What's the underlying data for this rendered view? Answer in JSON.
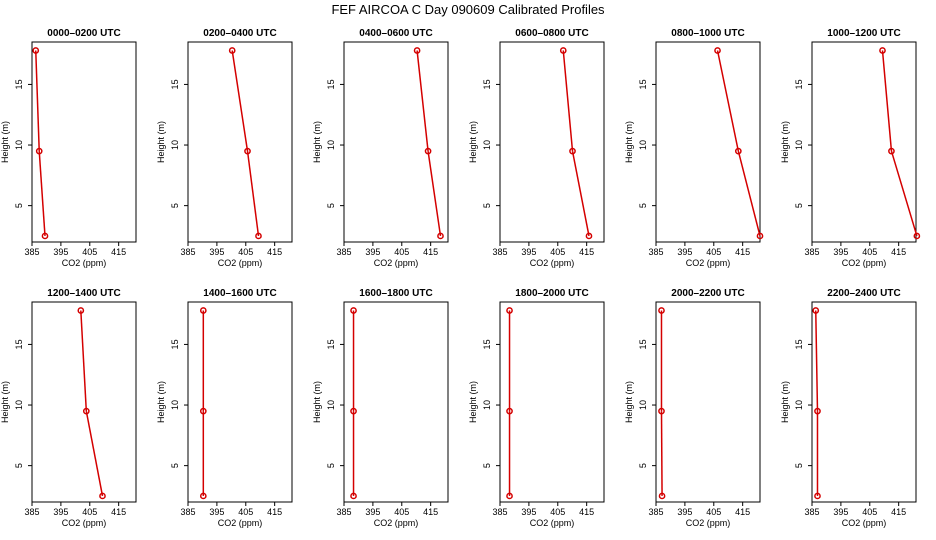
{
  "figure_title": "FEF AIRCOA C  Day 090609  Calibrated Profiles",
  "colors": {
    "profile": "#d40000",
    "axes": "#000000"
  },
  "chart_data": [
    {
      "type": "line",
      "title": "0000–0200 UTC",
      "xlabel": "CO2 (ppm)",
      "ylabel": "Height (m)",
      "x_ticks": [
        "385",
        "395",
        "405",
        "415"
      ],
      "y_ticks": [
        "5",
        "10",
        "15"
      ],
      "xlim": [
        385,
        421
      ],
      "ylim": [
        2,
        18.5
      ],
      "heights": [
        17.8,
        9.5,
        2.5
      ],
      "co2": [
        386.3,
        387.5,
        389.5
      ]
    },
    {
      "type": "line",
      "title": "0200–0400 UTC",
      "xlabel": "CO2 (ppm)",
      "ylabel": "Height (m)",
      "x_ticks": [
        "385",
        "395",
        "405",
        "415"
      ],
      "y_ticks": [
        "5",
        "10",
        "15"
      ],
      "xlim": [
        385,
        421
      ],
      "ylim": [
        2,
        18.5
      ],
      "heights": [
        17.8,
        9.5,
        2.5
      ],
      "co2": [
        400.3,
        405.6,
        409.4
      ]
    },
    {
      "type": "line",
      "title": "0400–0600 UTC",
      "xlabel": "CO2 (ppm)",
      "ylabel": "Height (m)",
      "x_ticks": [
        "385",
        "395",
        "405",
        "415"
      ],
      "y_ticks": [
        "5",
        "10",
        "15"
      ],
      "xlim": [
        385,
        421
      ],
      "ylim": [
        2,
        18.5
      ],
      "heights": [
        17.8,
        9.5,
        2.5
      ],
      "co2": [
        410.3,
        414.1,
        418.4
      ]
    },
    {
      "type": "line",
      "title": "0600–0800 UTC",
      "xlabel": "CO2 (ppm)",
      "ylabel": "Height (m)",
      "x_ticks": [
        "385",
        "395",
        "405",
        "415"
      ],
      "y_ticks": [
        "5",
        "10",
        "15"
      ],
      "xlim": [
        385,
        421
      ],
      "ylim": [
        2,
        18.5
      ],
      "heights": [
        17.8,
        9.5,
        2.5
      ],
      "co2": [
        406.9,
        410.1,
        415.8
      ]
    },
    {
      "type": "line",
      "title": "0800–1000 UTC",
      "xlabel": "CO2 (ppm)",
      "ylabel": "Height (m)",
      "x_ticks": [
        "385",
        "395",
        "405",
        "415"
      ],
      "y_ticks": [
        "5",
        "10",
        "15"
      ],
      "xlim": [
        385,
        421
      ],
      "ylim": [
        2,
        18.5
      ],
      "heights": [
        17.8,
        9.5,
        2.5
      ],
      "co2": [
        406.3,
        413.5,
        421.0
      ]
    },
    {
      "type": "line",
      "title": "1000–1200 UTC",
      "xlabel": "CO2 (ppm)",
      "ylabel": "Height (m)",
      "x_ticks": [
        "385",
        "395",
        "405",
        "415"
      ],
      "y_ticks": [
        "5",
        "10",
        "15"
      ],
      "xlim": [
        385,
        421
      ],
      "ylim": [
        2,
        18.5
      ],
      "heights": [
        17.8,
        9.5,
        2.5
      ],
      "co2": [
        409.4,
        412.5,
        421.3
      ]
    },
    {
      "type": "line",
      "title": "1200–1400 UTC",
      "xlabel": "CO2 (ppm)",
      "ylabel": "Height (m)",
      "x_ticks": [
        "385",
        "395",
        "405",
        "415"
      ],
      "y_ticks": [
        "5",
        "10",
        "15"
      ],
      "xlim": [
        385,
        421
      ],
      "ylim": [
        2,
        18.5
      ],
      "heights": [
        17.8,
        9.5,
        2.5
      ],
      "co2": [
        401.9,
        403.8,
        409.4
      ]
    },
    {
      "type": "line",
      "title": "1400–1600 UTC",
      "xlabel": "CO2 (ppm)",
      "ylabel": "Height (m)",
      "x_ticks": [
        "385",
        "395",
        "405",
        "415"
      ],
      "y_ticks": [
        "5",
        "10",
        "15"
      ],
      "xlim": [
        385,
        421
      ],
      "ylim": [
        2,
        18.5
      ],
      "heights": [
        17.8,
        9.5,
        2.5
      ],
      "co2": [
        390.3,
        390.3,
        390.3
      ]
    },
    {
      "type": "line",
      "title": "1600–1800 UTC",
      "xlabel": "CO2 (ppm)",
      "ylabel": "Height (m)",
      "x_ticks": [
        "385",
        "395",
        "405",
        "415"
      ],
      "y_ticks": [
        "5",
        "10",
        "15"
      ],
      "xlim": [
        385,
        421
      ],
      "ylim": [
        2,
        18.5
      ],
      "heights": [
        17.8,
        9.5,
        2.5
      ],
      "co2": [
        388.3,
        388.3,
        388.3
      ]
    },
    {
      "type": "line",
      "title": "1800–2000 UTC",
      "xlabel": "CO2 (ppm)",
      "ylabel": "Height (m)",
      "x_ticks": [
        "385",
        "395",
        "405",
        "415"
      ],
      "y_ticks": [
        "5",
        "10",
        "15"
      ],
      "xlim": [
        385,
        421
      ],
      "ylim": [
        2,
        18.5
      ],
      "heights": [
        17.8,
        9.5,
        2.5
      ],
      "co2": [
        388.3,
        388.3,
        388.3
      ]
    },
    {
      "type": "line",
      "title": "2000–2200 UTC",
      "xlabel": "CO2 (ppm)",
      "ylabel": "Height (m)",
      "x_ticks": [
        "385",
        "395",
        "405",
        "415"
      ],
      "y_ticks": [
        "5",
        "10",
        "15"
      ],
      "xlim": [
        385,
        421
      ],
      "ylim": [
        2,
        18.5
      ],
      "heights": [
        17.8,
        9.5,
        2.5
      ],
      "co2": [
        386.9,
        386.9,
        387.1
      ]
    },
    {
      "type": "line",
      "title": "2200–2400 UTC",
      "xlabel": "CO2 (ppm)",
      "ylabel": "Height (m)",
      "x_ticks": [
        "385",
        "395",
        "405",
        "415"
      ],
      "y_ticks": [
        "5",
        "10",
        "15"
      ],
      "xlim": [
        385,
        421
      ],
      "ylim": [
        2,
        18.5
      ],
      "heights": [
        17.8,
        9.5,
        2.5
      ],
      "co2": [
        386.3,
        386.9,
        386.9
      ]
    }
  ]
}
